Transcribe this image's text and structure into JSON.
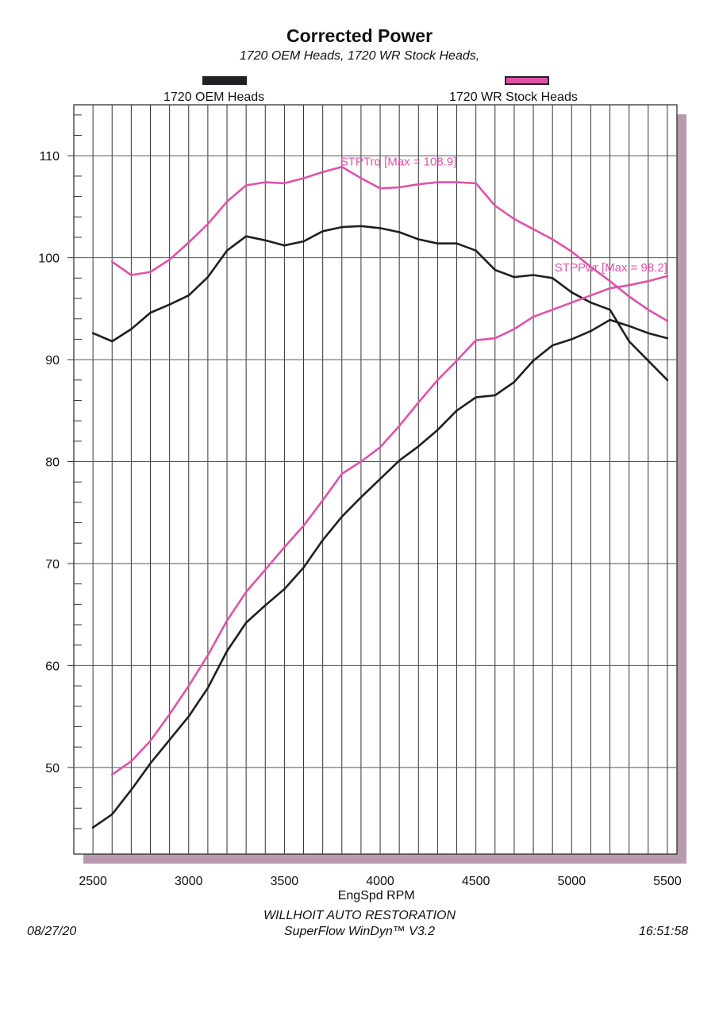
{
  "header": {
    "title": "Corrected Power",
    "subtitle": "1720 OEM Heads, 1720 WR Stock Heads,"
  },
  "legend": [
    {
      "label": "1720 OEM Heads",
      "color": "#1f1f24"
    },
    {
      "label": "1720 WR Stock Heads",
      "color": "#e052a8"
    }
  ],
  "footer": {
    "company": "WILLHOIT AUTO RESTORATION",
    "software": "SuperFlow WinDyn™ V3.2",
    "date": "08/27/20",
    "time": "16:51:58"
  },
  "chart_data": {
    "type": "line",
    "xlabel": "EngSpd RPM",
    "ylabel": "",
    "xlim": [
      2400,
      5550
    ],
    "ylim": [
      41.5,
      115
    ],
    "x_ticks": [
      2500,
      3000,
      3500,
      4000,
      4500,
      5000,
      5500
    ],
    "y_ticks": [
      50,
      60,
      70,
      80,
      90,
      100,
      110
    ],
    "grid": true,
    "legend_position": "top",
    "annotations": [
      {
        "text": "STPTrq [Max = 108.9]",
        "x": 3800,
        "y": 108.9,
        "color": "#e052a8"
      },
      {
        "text": "STPPwr [Max = 98.2]",
        "x": 5500,
        "y": 98.2,
        "color": "#e052a8"
      }
    ],
    "series": [
      {
        "name": "1720 OEM Heads",
        "metric": "STPTrq",
        "color": "#1f1f24",
        "x": [
          2500,
          2600,
          2700,
          2800,
          2900,
          3000,
          3100,
          3200,
          3300,
          3400,
          3500,
          3600,
          3700,
          3800,
          3900,
          4000,
          4100,
          4200,
          4300,
          4400,
          4500,
          4600,
          4700,
          4800,
          4900,
          5000,
          5100,
          5200,
          5300,
          5400,
          5500
        ],
        "values": [
          92.6,
          91.8,
          93.0,
          94.6,
          95.4,
          96.3,
          98.1,
          100.7,
          102.1,
          101.7,
          101.2,
          101.6,
          102.6,
          103.0,
          103.1,
          102.9,
          102.5,
          101.8,
          101.4,
          101.4,
          100.7,
          98.8,
          98.1,
          98.3,
          98.0,
          96.6,
          95.6,
          94.9,
          91.8,
          89.9,
          88.0
        ]
      },
      {
        "name": "1720 OEM Heads",
        "metric": "STPPwr",
        "color": "#1f1f24",
        "x": [
          2500,
          2600,
          2700,
          2800,
          2900,
          3000,
          3100,
          3200,
          3300,
          3400,
          3500,
          3600,
          3700,
          3800,
          3900,
          4000,
          4100,
          4200,
          4300,
          4400,
          4500,
          4600,
          4700,
          4800,
          4900,
          5000,
          5100,
          5200,
          5300,
          5400,
          5500
        ],
        "values": [
          44.1,
          45.4,
          47.8,
          50.4,
          52.7,
          55.0,
          57.8,
          61.4,
          64.2,
          65.9,
          67.5,
          69.6,
          72.3,
          74.6,
          76.5,
          78.3,
          80.1,
          81.5,
          83.1,
          85.0,
          86.3,
          86.5,
          87.8,
          89.9,
          91.4,
          92.0,
          92.8,
          93.9,
          93.3,
          92.6,
          92.1
        ]
      },
      {
        "name": "1720 WR Stock Heads",
        "metric": "STPTrq",
        "color": "#e052a8",
        "x": [
          2600,
          2700,
          2800,
          2900,
          3000,
          3100,
          3200,
          3300,
          3400,
          3500,
          3600,
          3700,
          3800,
          3900,
          4000,
          4100,
          4200,
          4300,
          4400,
          4500,
          4600,
          4700,
          4800,
          4900,
          5000,
          5100,
          5200,
          5300,
          5400,
          5500
        ],
        "values": [
          99.6,
          98.3,
          98.6,
          99.8,
          101.5,
          103.3,
          105.5,
          107.1,
          107.4,
          107.3,
          107.8,
          108.4,
          108.9,
          107.8,
          106.8,
          106.9,
          107.2,
          107.4,
          107.4,
          107.3,
          105.1,
          103.8,
          102.8,
          101.8,
          100.6,
          99.1,
          97.7,
          96.2,
          94.9,
          93.8
        ]
      },
      {
        "name": "1720 WR Stock Heads",
        "metric": "STPPwr",
        "color": "#e052a8",
        "x": [
          2600,
          2700,
          2800,
          2900,
          3000,
          3100,
          3200,
          3300,
          3400,
          3500,
          3600,
          3700,
          3800,
          3900,
          4000,
          4100,
          4200,
          4300,
          4400,
          4500,
          4600,
          4700,
          4800,
          4900,
          5000,
          5100,
          5200,
          5300,
          5400,
          5500
        ],
        "values": [
          49.3,
          50.6,
          52.6,
          55.2,
          58.0,
          61.0,
          64.4,
          67.2,
          69.4,
          71.6,
          73.7,
          76.2,
          78.8,
          80.0,
          81.4,
          83.5,
          85.8,
          88.0,
          89.9,
          91.9,
          92.1,
          93.0,
          94.2,
          94.9,
          95.6,
          96.3,
          97.0,
          97.3,
          97.7,
          98.2
        ]
      }
    ]
  }
}
